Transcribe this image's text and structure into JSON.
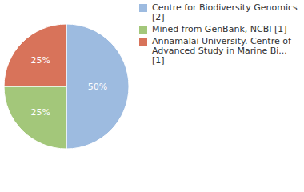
{
  "chart_data": {
    "type": "pie",
    "categories": [
      "Centre for Biodiversity Genomics [2]",
      "Mined from GenBank, NCBI [1]",
      "Annamalai University. Centre of Advanced Study in Marine Bi... [1]"
    ],
    "values": [
      50,
      25,
      25
    ],
    "value_labels": [
      "50%",
      "25%",
      "25%"
    ],
    "colors": [
      "#9dbbe0",
      "#a3c77a",
      "#d8735a"
    ],
    "data_labels": true,
    "legend": "right"
  }
}
